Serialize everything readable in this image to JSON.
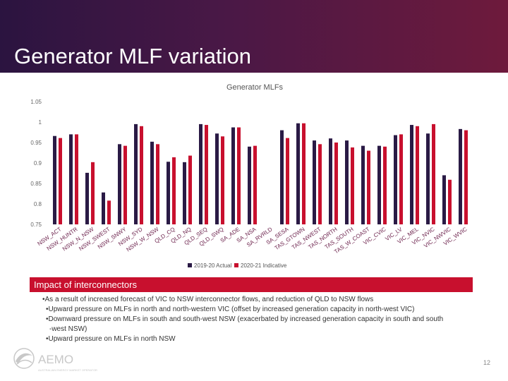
{
  "slide": {
    "title": "Generator MLF variation",
    "callout": "Impact of interconnectors",
    "bullets": [
      "•As a result of increased forecast of VIC to NSW interconnector flows, and reduction of QLD to NSW flows",
      "•Upward pressure on MLFs in north and north-western VIC (offset by increased generation capacity in north-west VIC)",
      "•Downward pressure on MLFs in south and south-west NSW (exacerbated by increased generation capacity in south and south",
      "-west NSW)",
      "•Upward pressure on MLFs in north NSW"
    ],
    "logo_text": "AEMO",
    "logo_tagline": "AUSTRALIAN ENERGY MARKET OPERATOR",
    "page_number": "12"
  },
  "colors": {
    "series1": "#2a1a45",
    "series2": "#c8102e"
  },
  "chart_data": {
    "type": "bar",
    "title": "Generator MLFs",
    "ylim": [
      0.75,
      1.05
    ],
    "yticks": [
      "1.05",
      "1",
      "0.95",
      "0.9",
      "0.85",
      "0.8",
      "0.75"
    ],
    "ytick_values": [
      1.05,
      1.0,
      0.95,
      0.9,
      0.85,
      0.8,
      0.75
    ],
    "legend_position": "bottom",
    "grid": false,
    "categories": [
      "NSW_ACT",
      "NSW_HUNTR",
      "NSW_N_NSW",
      "NSW_SWEST",
      "NSW_SNWY",
      "NSW_SYD",
      "NSW_W_NSW",
      "QLD_CQ",
      "QLD_NQ",
      "QLD_SEQ",
      "QLD_SWQ",
      "SA_ADE",
      "SA_NSA",
      "SA_RVRLD",
      "SA_SESA",
      "TAS_GTOWN",
      "TAS_NWEST",
      "TAS_NORTH",
      "TAS_SOUTH",
      "TAS_W_COAST",
      "VIC_CVIC",
      "VIC_LV",
      "VIC_MEL",
      "VIC_NVIC",
      "VIC_NWVIC",
      "VIC_WVIC"
    ],
    "series": [
      {
        "name": "2019-20 Actual",
        "values": [
          0.966,
          0.97,
          0.876,
          0.828,
          0.946,
          0.995,
          0.952,
          0.903,
          0.902,
          0.995,
          0.972,
          0.987,
          0.94,
          null,
          0.98,
          0.997,
          0.955,
          0.96,
          0.955,
          0.942,
          0.942,
          0.968,
          0.993,
          0.972,
          0.87,
          0.983
        ]
      },
      {
        "name": "2020-21 Indicative",
        "values": [
          0.961,
          0.97,
          0.902,
          0.808,
          0.942,
          0.99,
          0.946,
          0.914,
          0.918,
          0.993,
          0.965,
          0.987,
          0.942,
          null,
          0.961,
          0.997,
          0.946,
          0.95,
          0.938,
          0.93,
          0.94,
          0.97,
          0.99,
          0.995,
          0.859,
          0.98
        ]
      }
    ]
  }
}
